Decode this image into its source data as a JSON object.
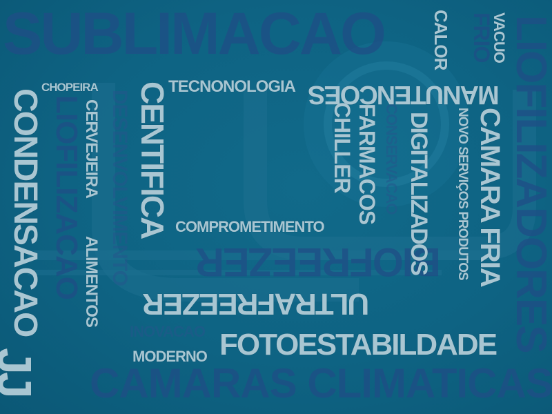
{
  "words": {
    "sublimacao": "SUBLIMACAO",
    "liofilizadores": "LIOFILIZADORES",
    "camaras_climaticas": "CAMARAS CLIMATICAS",
    "liofilizacao": "LIOFILIZACAO",
    "desenvolvimento": "DESENVOLVIMENTO",
    "biofreezer": "BIOFREEZER",
    "inovacao": "INOVACAO",
    "conservacao": "CONSERVACAO",
    "frio": "FRIO",
    "calor": "CALOR",
    "vacuo": "VACUO",
    "chopeira": "CHOPEIRA",
    "tecnonologia": "TECNONOLOGIA",
    "manutencoes": "MANUTENCOES",
    "condensacao": "CONDENSACAO",
    "cervejeira": "CERVEJEIRA",
    "alimentos": "ALIMENTOS",
    "centifica": "CENTIFICA",
    "chiller": "CHILLER",
    "farmacos": "FARMACOS",
    "digitalizados": "DIGITALIZADOS",
    "novo_servicos_produtos": "NOVO SERVIÇOS PRODUTOS",
    "camara_fria": "CAMARA FRIA",
    "comprometimento": "COMPROMETIMENTO",
    "ultrafreezer": "ULTRAFREEZER",
    "fotoestabilidade": "FOTOESTABILDADE",
    "moderno": "MODERNO",
    "jj": "JJ"
  },
  "colors": {
    "background": "#0e6383",
    "foreground_text": "#a9c6d2",
    "background_text": "#1f4e86"
  }
}
